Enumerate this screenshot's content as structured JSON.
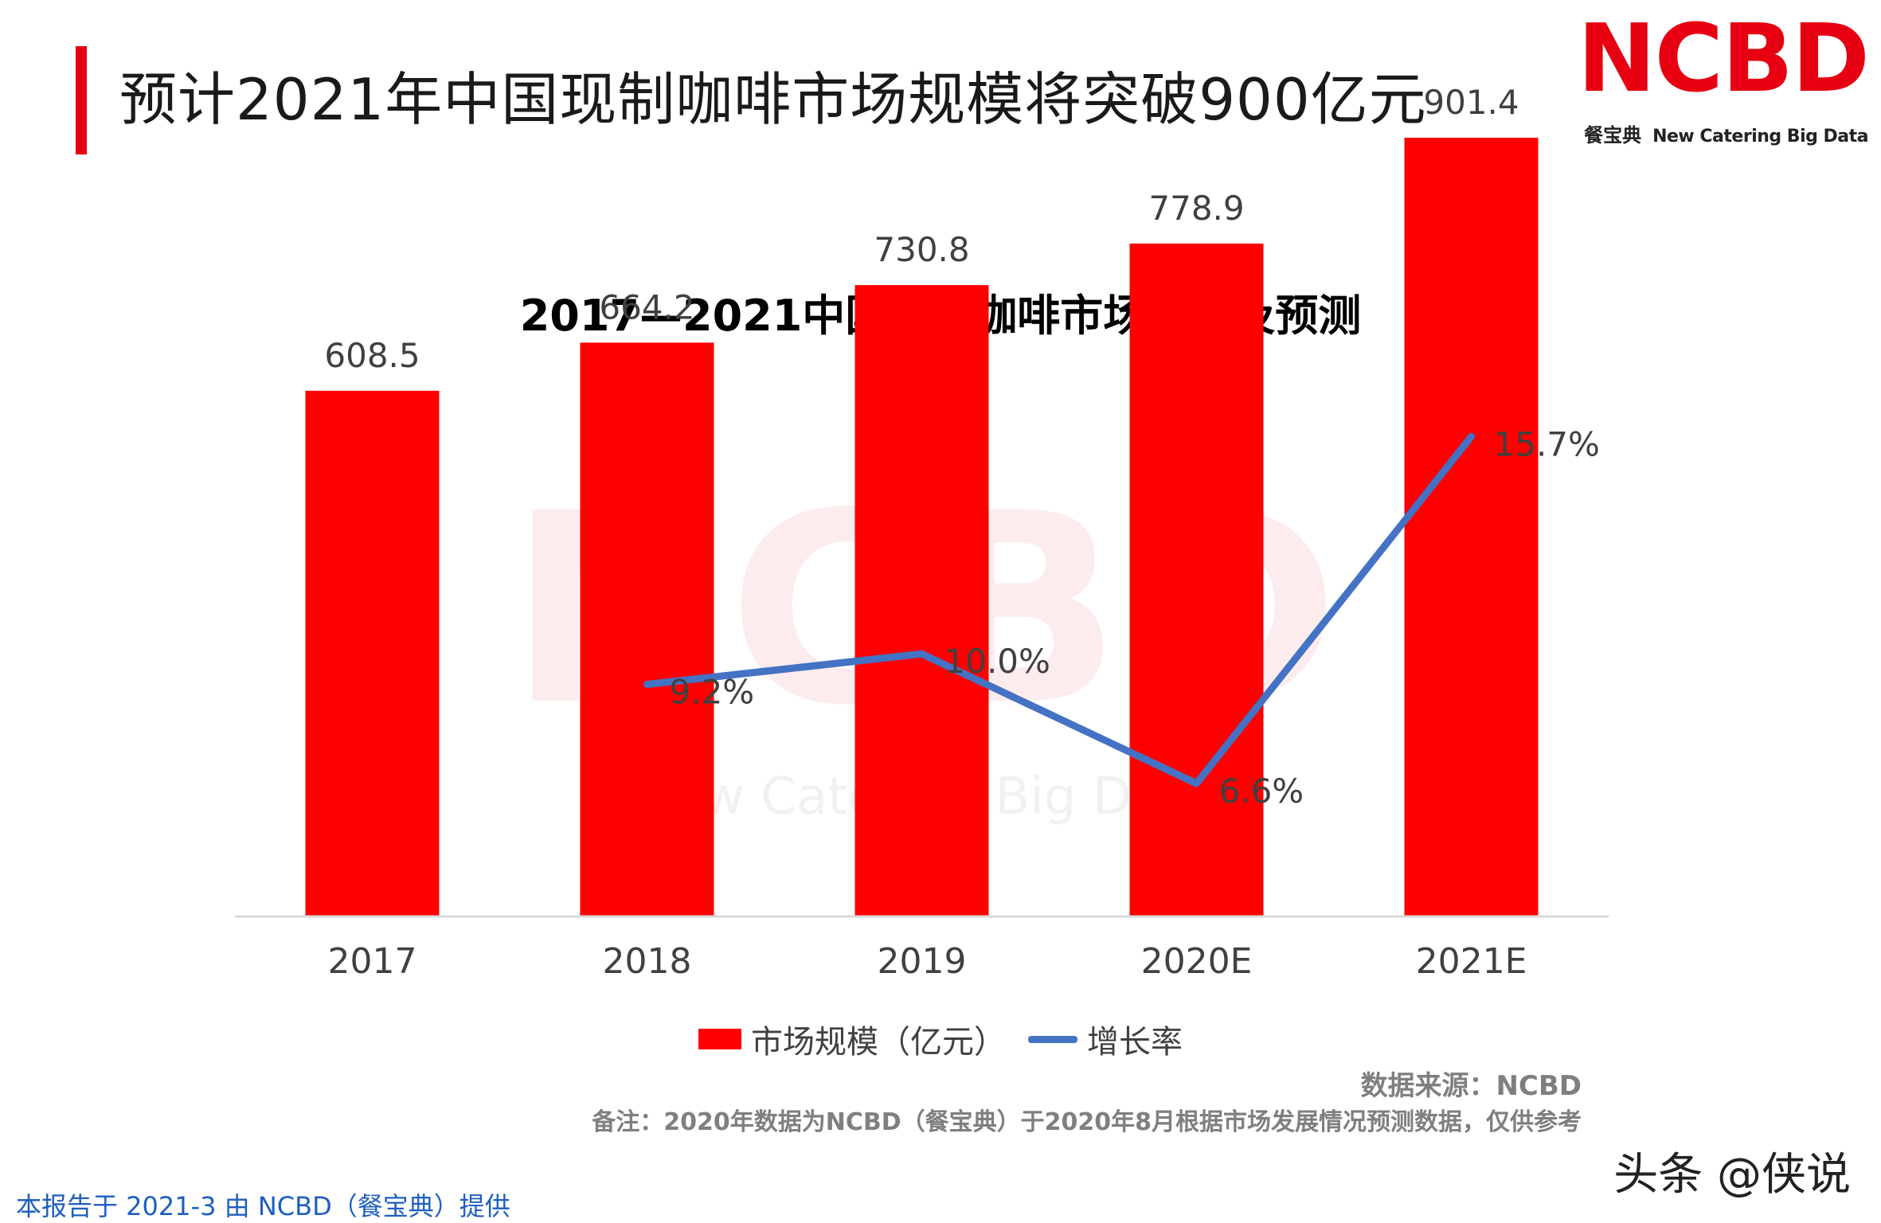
{
  "slide": {
    "title": "预计2021年中国现制咖啡市场规模将突破900亿元",
    "accent_color": "#e60012"
  },
  "logo": {
    "mark": "NCBD",
    "cn": "餐宝典",
    "en": "New Catering Big Data"
  },
  "chart_data": {
    "type": "bar",
    "title": "2017—2021中国现制咖啡市场规模及预测",
    "categories": [
      "2017",
      "2018",
      "2019",
      "2020E",
      "2021E"
    ],
    "series": [
      {
        "name": "市场规模（亿元）",
        "type": "bar",
        "color": "#ff0000",
        "values": [
          608.5,
          664.2,
          730.8,
          778.9,
          901.4
        ],
        "labels": [
          "608.5",
          "664.2",
          "730.8",
          "778.9",
          "901.4"
        ]
      },
      {
        "name": "增长率",
        "type": "line",
        "color": "#4472c4",
        "values": [
          null,
          9.2,
          10.0,
          6.6,
          15.7
        ],
        "labels": [
          "",
          "9.2%",
          "10.0%",
          "6.6%",
          "15.7%"
        ]
      }
    ],
    "ylim": [
      0,
      1000
    ],
    "y2lim": [
      0,
      16.5
    ],
    "grid": false,
    "legend_position": "bottom"
  },
  "source": "数据来源：NCBD",
  "note": "备注：2020年数据为NCBD（餐宝典）于2020年8月根据市场发展情况预测数据，仅供参考",
  "footer": "本报告于 2021-3 由 NCBD（餐宝典）提供",
  "credit": "头条 @侠说"
}
